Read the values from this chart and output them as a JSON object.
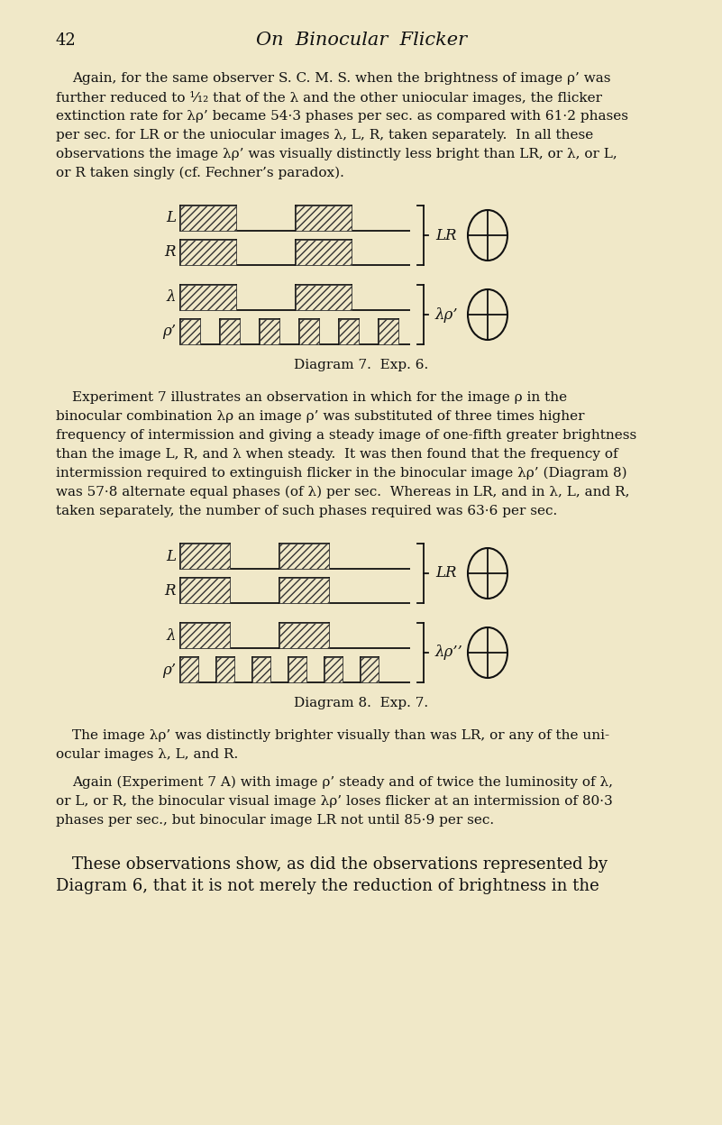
{
  "bg_color": "#f0e8c8",
  "page_number": "42",
  "title": "On  Binocular  Flicker",
  "diagram7_caption": "Diagram 7.  Exp. 6.",
  "diagram8_caption": "Diagram 8.  Exp. 7.",
  "para1_lines": [
    "Again, for the same observer S. C. M. S. when the brightness of image ρ’ was",
    "further reduced to ¹⁄₁₂ that of the λ and the other uniocular images, the flicker",
    "extinction rate for λρ’ became 54·3 phases per sec. as compared with 61·2 phases",
    "per sec. for LR or the uniocular images λ, L, R, taken separately.  In all these",
    "observations the image λρ’ was visually distinctly less bright than LR, or λ, or L,",
    "or R taken singly (cf. Fechner’s paradox)."
  ],
  "para2_lines": [
    "Experiment 7 illustrates an observation in which for the image ρ in the",
    "binocular combination λρ an image ρ’ was substituted of three times higher",
    "frequency of intermission and giving a steady image of one-fifth greater brightness",
    "than the image L, R, and λ when steady.  It was then found that the frequency of",
    "intermission required to extinguish flicker in the binocular image λρ’ (Diagram 8)",
    "was 57·8 alternate equal phases (of λ) per sec.  Whereas in LR, and in λ, L, and R,",
    "taken separately, the number of such phases required was 63·6 per sec."
  ],
  "para3_lines": [
    "The image λρ’ was distinctly brighter visually than was LR, or any of the uni-",
    "ocular images λ, L, and R."
  ],
  "para4_lines": [
    "Again (Experiment 7 A) with image ρ’ steady and of twice the luminosity of λ,",
    "or L, or R, the binocular visual image λρ’ loses flicker at an intermission of 80·3",
    "phases per sec., but binocular image LR not until 85·9 per sec."
  ],
  "para5_lines": [
    "These observations show, as did the observations represented by",
    "Diagram 6, that it is not merely the reduction of brightness in the"
  ]
}
